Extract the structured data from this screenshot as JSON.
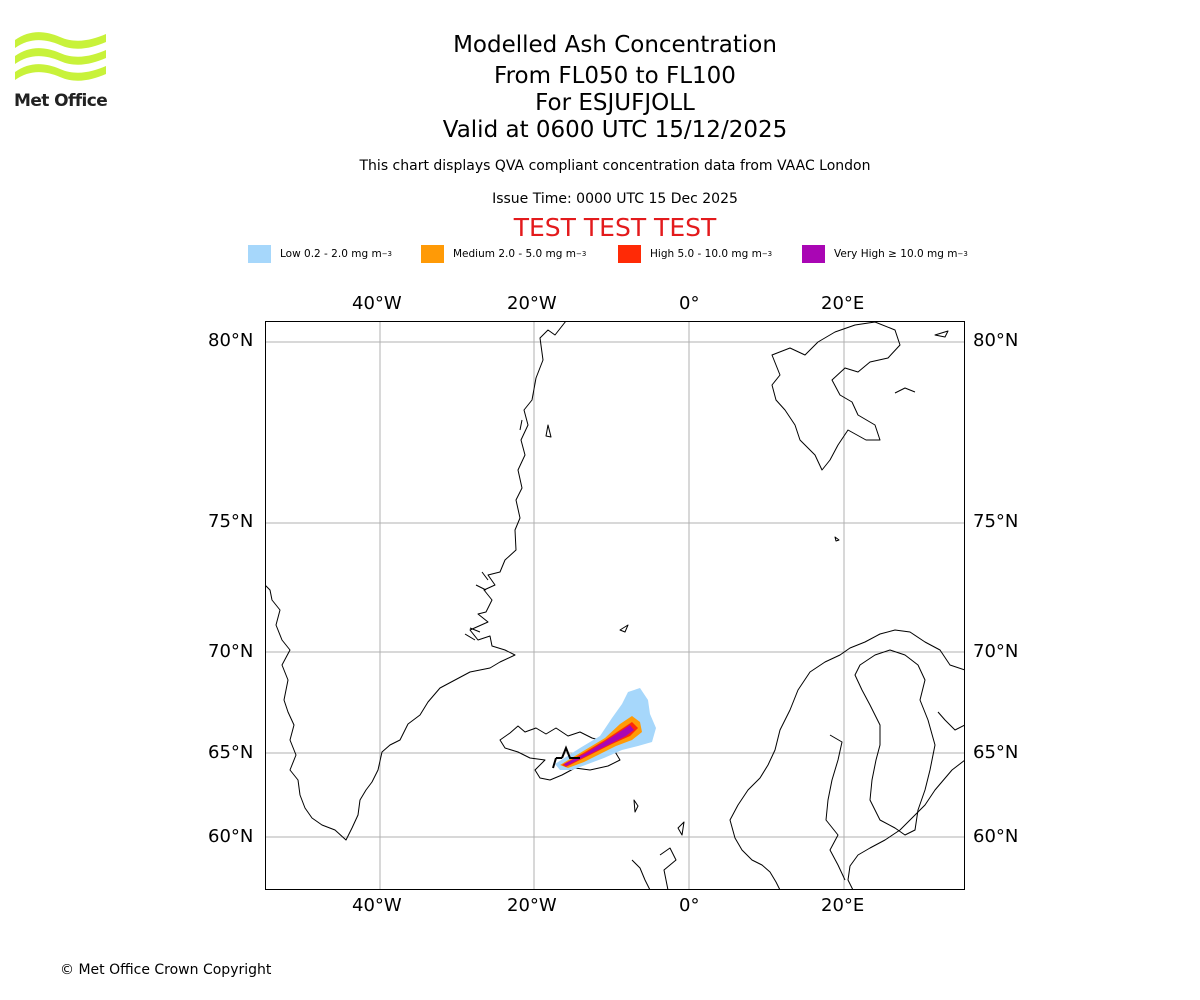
{
  "logo": {
    "text": "Met Office",
    "color": "#c8f23a"
  },
  "header": {
    "title": "Modelled Ash Concentration",
    "levels": "From FL050 to FL100",
    "volcano": "For ESJUFJOLL",
    "valid": "Valid at 0600 UTC 15/12/2025",
    "note": "This chart displays QVA compliant concentration data from VAAC London",
    "issue": "Issue Time: 0000 UTC 15 Dec 2025",
    "test_banner": "TEST TEST TEST"
  },
  "legend": [
    {
      "label": "Low 0.2 - 2.0 mg m",
      "unit_sup": "−3",
      "color": "#a6d7fb"
    },
    {
      "label": "Medium 2.0 - 5.0 mg m",
      "unit_sup": "−3",
      "color": "#ff9a06"
    },
    {
      "label": "High 5.0 - 10.0 mg m",
      "unit_sup": "−3",
      "color": "#ff2a06"
    },
    {
      "label": "Very High  ≥  10.0 mg m",
      "unit_sup": "−3",
      "color": "#a906b4"
    }
  ],
  "map": {
    "lon_ticks": [
      "40°W",
      "20°W",
      "0°",
      "20°E"
    ],
    "lat_ticks": [
      "80°N",
      "75°N",
      "70°N",
      "65°N",
      "60°N"
    ],
    "region": "North Atlantic / Iceland",
    "gridlines": true
  },
  "footer": {
    "copyright": "© Met Office Crown Copyright"
  }
}
